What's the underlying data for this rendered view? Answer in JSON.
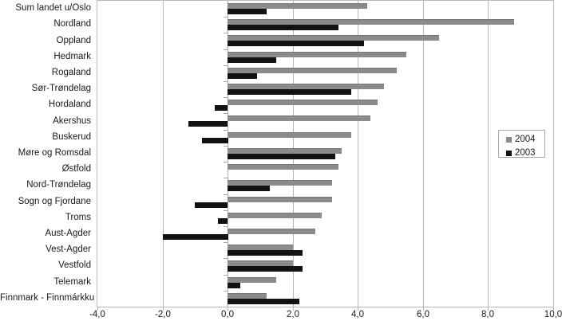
{
  "chart_data": {
    "type": "bar",
    "orientation": "horizontal",
    "title": "",
    "categories": [
      "Sum landet u/Oslo",
      "Nordland",
      "Oppland",
      "Hedmark",
      "Rogaland",
      "Sør-Trøndelag",
      "Hordaland",
      "Akershus",
      "Buskerud",
      "Møre og Romsdal",
      "Østfold",
      "Nord-Trøndelag",
      "Sogn og Fjordane",
      "Troms",
      "Aust-Agder",
      "Vest-Agder",
      "Vestfold",
      "Telemark",
      "Finnmark - Finnmárkku"
    ],
    "series": [
      {
        "name": "2004",
        "color": "#8b8b8b",
        "values": [
          4.3,
          8.8,
          6.5,
          5.5,
          5.2,
          4.8,
          4.6,
          4.4,
          3.8,
          3.5,
          3.4,
          3.2,
          3.2,
          2.9,
          2.7,
          2.0,
          2.0,
          1.5,
          1.2
        ]
      },
      {
        "name": "2003",
        "color": "#121212",
        "values": [
          1.2,
          3.4,
          4.2,
          1.5,
          0.9,
          3.8,
          -0.4,
          -1.2,
          -0.8,
          3.3,
          0.0,
          1.3,
          -1.0,
          -0.3,
          -2.0,
          2.3,
          2.3,
          0.4,
          2.2
        ]
      }
    ],
    "xlim": [
      -4,
      10
    ],
    "x_tick_values": [
      -4,
      -2,
      0,
      2,
      4,
      6,
      8,
      10
    ],
    "x_tick_labels": [
      "-4,0",
      "-2,0",
      "0,0",
      "2,0",
      "4,0",
      "6,0",
      "8,0",
      "10,0"
    ],
    "grid": true,
    "legend_position": "middle-right",
    "colors": {
      "gridline": "#b9b9b9",
      "text": "#1a1a1a",
      "legend_border": "#a8a8a8"
    }
  }
}
